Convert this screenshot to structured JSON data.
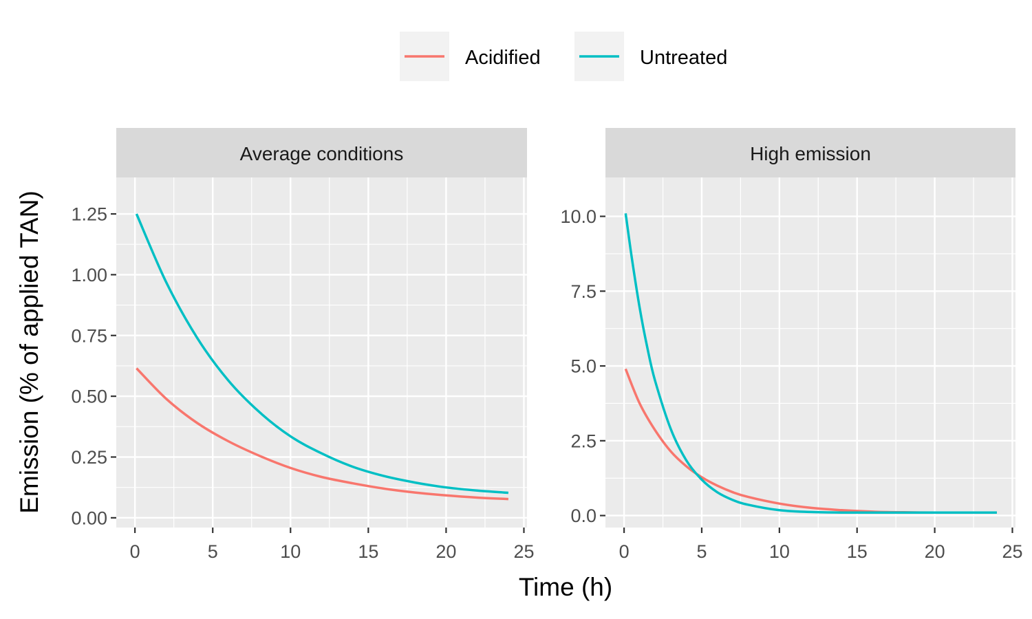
{
  "chart_data": {
    "type": "line",
    "xlabel": "Time (h)",
    "ylabel": "Emission (% of applied TAN)",
    "legend": {
      "position": "top",
      "entries": [
        "Acidified",
        "Untreated"
      ]
    },
    "colors": {
      "Acidified": "#F8766D",
      "Untreated": "#00BFC4"
    },
    "grid": true,
    "panels": [
      {
        "title": "Average conditions",
        "xlim": [
          -1.2,
          25.2
        ],
        "ylim": [
          -0.04,
          1.4
        ],
        "xticks": [
          0,
          5,
          10,
          15,
          20,
          25
        ],
        "xtick_labels": [
          "0",
          "5",
          "10",
          "15",
          "20",
          "25"
        ],
        "yticks": [
          0,
          0.25,
          0.5,
          0.75,
          1.0,
          1.25
        ],
        "ytick_labels": [
          "0.00",
          "0.25",
          "0.50",
          "0.75",
          "1.00",
          "1.25"
        ],
        "series": [
          {
            "name": "Acidified",
            "x": [
              0.1,
              2,
              4,
              6,
              8,
              10,
              12,
              14,
              16,
              18,
              20,
              22,
              24
            ],
            "y": [
              0.615,
              0.49,
              0.39,
              0.315,
              0.255,
              0.205,
              0.168,
              0.142,
              0.12,
              0.104,
              0.092,
              0.083,
              0.077
            ]
          },
          {
            "name": "Untreated",
            "x": [
              0.1,
              2,
              4,
              6,
              8,
              10,
              12,
              14,
              16,
              18,
              20,
              22,
              24
            ],
            "y": [
              1.25,
              0.97,
              0.74,
              0.565,
              0.435,
              0.335,
              0.265,
              0.21,
              0.172,
              0.145,
              0.125,
              0.112,
              0.103
            ]
          }
        ]
      },
      {
        "title": "High emission",
        "xlim": [
          -1.2,
          25.2
        ],
        "ylim": [
          -0.4,
          11.3
        ],
        "xticks": [
          0,
          5,
          10,
          15,
          20,
          25
        ],
        "xtick_labels": [
          "0",
          "5",
          "10",
          "15",
          "20",
          "25"
        ],
        "yticks": [
          0,
          2.5,
          5.0,
          7.5,
          10.0
        ],
        "ytick_labels": [
          "0.0",
          "2.5",
          "5.0",
          "7.5",
          "10.0"
        ],
        "series": [
          {
            "name": "Acidified",
            "x": [
              0.1,
              1,
              2,
              3,
              4,
              5,
              6,
              7,
              8,
              10,
              12,
              14,
              16,
              18,
              20,
              22,
              24
            ],
            "y": [
              4.9,
              3.75,
              2.85,
              2.15,
              1.65,
              1.28,
              1.0,
              0.78,
              0.62,
              0.4,
              0.26,
              0.18,
              0.13,
              0.11,
              0.1,
              0.1,
              0.1
            ]
          },
          {
            "name": "Untreated",
            "x": [
              0.1,
              0.5,
              1,
              1.5,
              2,
              3,
              4,
              5,
              6,
              7,
              8,
              10,
              12,
              14,
              16,
              18,
              20,
              22,
              24
            ],
            "y": [
              10.1,
              8.6,
              6.95,
              5.6,
              4.5,
              2.9,
              1.85,
              1.2,
              0.78,
              0.52,
              0.36,
              0.18,
              0.12,
              0.1,
              0.1,
              0.1,
              0.1,
              0.1,
              0.1
            ]
          }
        ]
      }
    ]
  }
}
